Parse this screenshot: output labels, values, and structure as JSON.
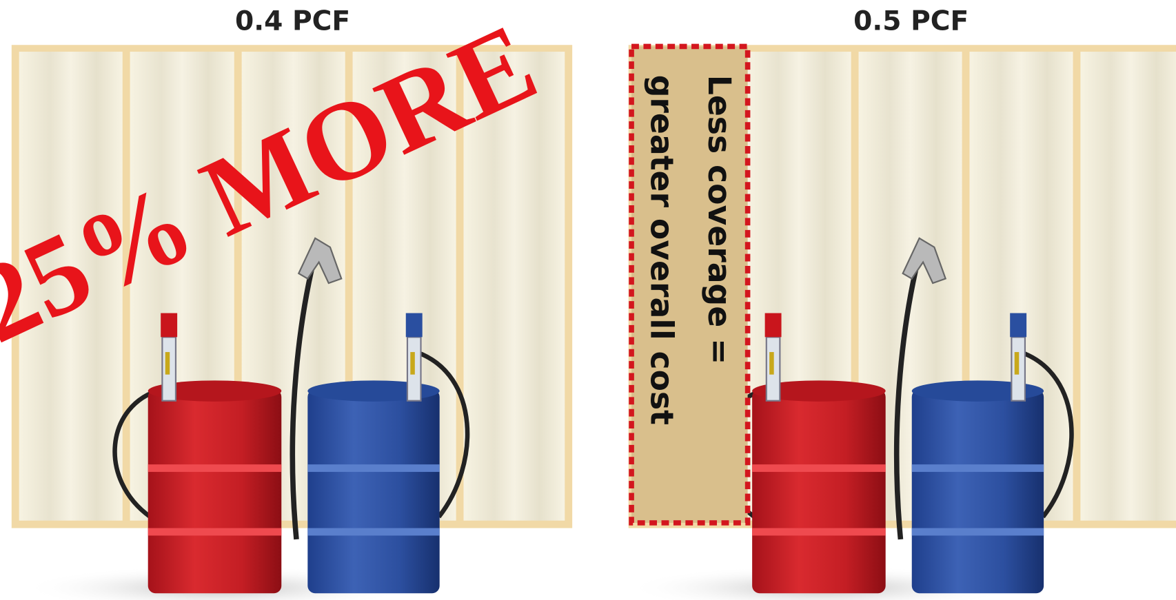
{
  "panels": [
    {
      "title": "0.4 PCF"
    },
    {
      "title": "0.5 PCF"
    }
  ],
  "stamp": "25% MORE",
  "callout": {
    "lines": [
      "Less coverage =",
      "greater overall cost"
    ]
  }
}
